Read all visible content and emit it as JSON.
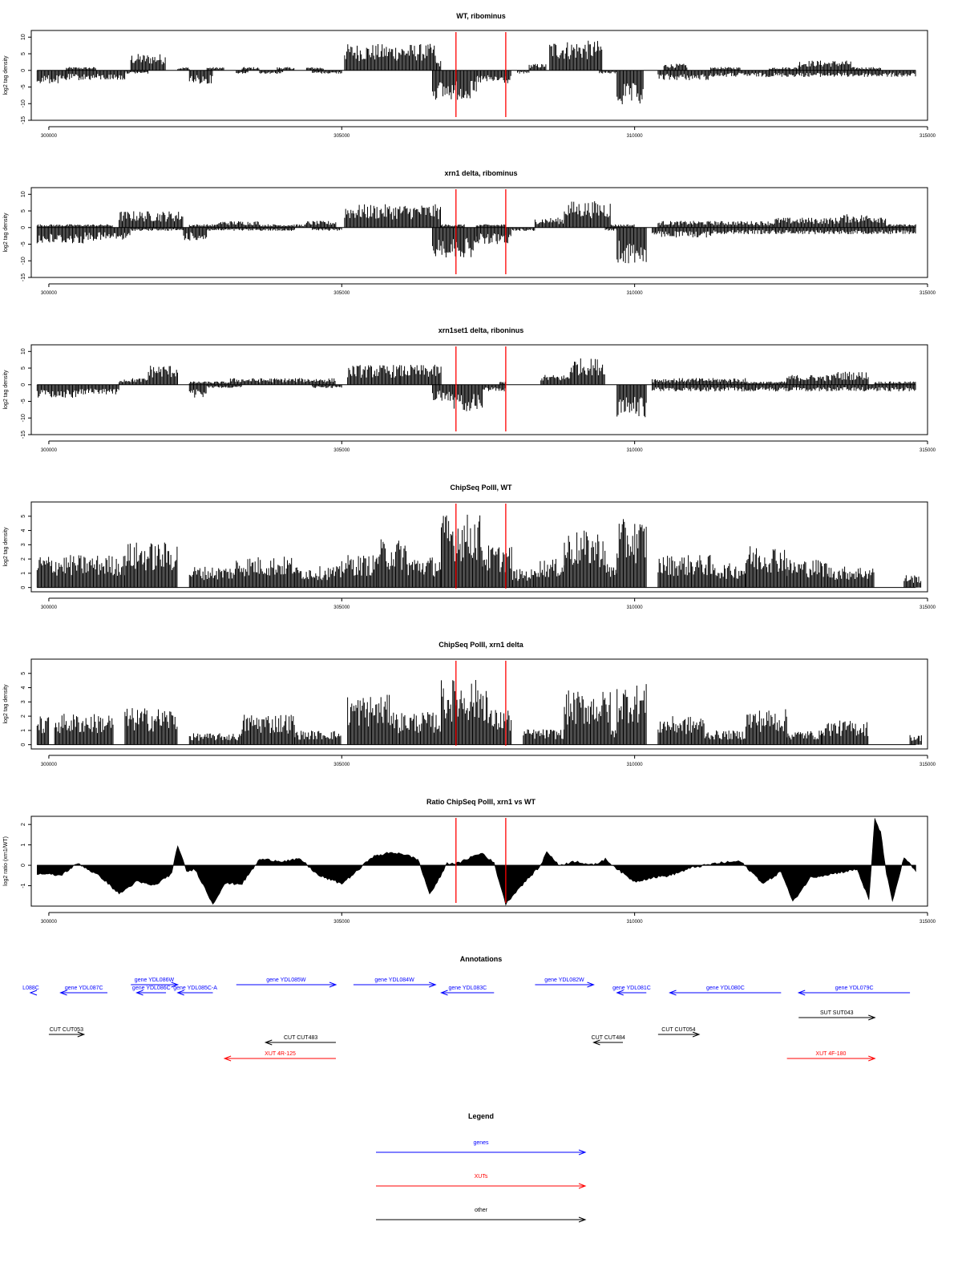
{
  "chart_data": [
    {
      "type": "bar",
      "title": "WT, ribominus",
      "ylabel": "log2 tag density",
      "xlim": [
        299700,
        315000
      ],
      "ylim": [
        -15,
        12
      ],
      "yticks": [
        -15,
        -10,
        -5,
        0,
        5,
        10
      ],
      "xticks": [
        300000,
        305000,
        310000,
        315000
      ],
      "red_lines_x": [
        306950,
        307800
      ],
      "plus_segments": [
        [
          300300,
          300800,
          1
        ],
        [
          301400,
          302000,
          5
        ],
        [
          302200,
          302400,
          1
        ],
        [
          302700,
          303000,
          1
        ],
        [
          303300,
          303600,
          1
        ],
        [
          303900,
          304200,
          1
        ],
        [
          304400,
          304700,
          1
        ],
        [
          305050,
          306600,
          8
        ],
        [
          306600,
          306700,
          3
        ],
        [
          308200,
          308500,
          2
        ],
        [
          308550,
          309450,
          9
        ],
        [
          310500,
          310900,
          2
        ],
        [
          311300,
          311800,
          1
        ],
        [
          312300,
          312800,
          1
        ],
        [
          312800,
          313700,
          3
        ],
        [
          313700,
          314200,
          1
        ]
      ],
      "minus_segments": [
        [
          299800,
          300300,
          4
        ],
        [
          300300,
          301300,
          3
        ],
        [
          301300,
          301700,
          1
        ],
        [
          302400,
          302800,
          4
        ],
        [
          303200,
          303400,
          1
        ],
        [
          303600,
          304000,
          1
        ],
        [
          304500,
          305000,
          1
        ],
        [
          306550,
          307300,
          9
        ],
        [
          307300,
          307900,
          4
        ],
        [
          308000,
          308200,
          1
        ],
        [
          309400,
          309700,
          1
        ],
        [
          309700,
          310150,
          11
        ],
        [
          310400,
          311300,
          3
        ],
        [
          311300,
          312300,
          2
        ],
        [
          312300,
          313300,
          2
        ],
        [
          313300,
          314800,
          2
        ]
      ]
    },
    {
      "type": "bar",
      "title": "xrn1 delta, ribominus",
      "ylabel": "log2 tag density",
      "xlim": [
        299700,
        315000
      ],
      "ylim": [
        -15,
        12
      ],
      "yticks": [
        -15,
        -10,
        -5,
        0,
        5,
        10
      ],
      "xticks": [
        300000,
        305000,
        310000,
        315000
      ],
      "red_lines_x": [
        306950,
        307800
      ],
      "plus_segments": [
        [
          299800,
          300300,
          1
        ],
        [
          300300,
          301100,
          1
        ],
        [
          301200,
          302300,
          5
        ],
        [
          302400,
          302900,
          1
        ],
        [
          302900,
          303600,
          2
        ],
        [
          303600,
          304400,
          1
        ],
        [
          304400,
          304900,
          2
        ],
        [
          305050,
          306700,
          7
        ],
        [
          306700,
          307100,
          1
        ],
        [
          307300,
          307800,
          1
        ],
        [
          308300,
          308800,
          3
        ],
        [
          308800,
          309600,
          8
        ],
        [
          309600,
          310000,
          1
        ],
        [
          310400,
          311300,
          2
        ],
        [
          311300,
          312400,
          2
        ],
        [
          312400,
          313500,
          3
        ],
        [
          313500,
          314300,
          4
        ],
        [
          314300,
          314800,
          1
        ]
      ],
      "minus_segments": [
        [
          299800,
          300600,
          5
        ],
        [
          300600,
          301400,
          4
        ],
        [
          301400,
          302300,
          1
        ],
        [
          302300,
          302700,
          4
        ],
        [
          302700,
          303500,
          1
        ],
        [
          303500,
          304200,
          1
        ],
        [
          304500,
          305000,
          1
        ],
        [
          306550,
          307300,
          9
        ],
        [
          307300,
          307900,
          5
        ],
        [
          307900,
          308300,
          1
        ],
        [
          309500,
          309700,
          1
        ],
        [
          309700,
          310200,
          11
        ],
        [
          310300,
          311300,
          3
        ],
        [
          311300,
          312300,
          2
        ],
        [
          312300,
          313300,
          2
        ],
        [
          313300,
          314800,
          2
        ]
      ]
    },
    {
      "type": "bar",
      "title": "xrn1set1 delta, riboninus",
      "ylabel": "log2 tag density",
      "xlim": [
        299700,
        315000
      ],
      "ylim": [
        -15,
        12
      ],
      "yticks": [
        -15,
        -10,
        -5,
        0,
        5,
        10
      ],
      "xticks": [
        300000,
        305000,
        310000,
        315000
      ],
      "red_lines_x": [
        306950,
        307800
      ],
      "plus_segments": [
        [
          301200,
          301700,
          2
        ],
        [
          301700,
          302200,
          6
        ],
        [
          302400,
          303100,
          1
        ],
        [
          303100,
          303800,
          2
        ],
        [
          303800,
          304300,
          2
        ],
        [
          304300,
          304900,
          2
        ],
        [
          305100,
          306000,
          6
        ],
        [
          306000,
          306700,
          6
        ],
        [
          307700,
          307800,
          1
        ],
        [
          308400,
          308900,
          3
        ],
        [
          308900,
          309500,
          8
        ],
        [
          310300,
          311000,
          2
        ],
        [
          311000,
          311900,
          2
        ],
        [
          311900,
          312600,
          1
        ],
        [
          312600,
          313400,
          3
        ],
        [
          313400,
          314000,
          4
        ],
        [
          314100,
          314800,
          1
        ]
      ],
      "minus_segments": [
        [
          299800,
          300500,
          4
        ],
        [
          300500,
          301200,
          3
        ],
        [
          302400,
          302700,
          4
        ],
        [
          302700,
          303300,
          1
        ],
        [
          304500,
          305000,
          1
        ],
        [
          306550,
          306900,
          5
        ],
        [
          306900,
          307400,
          8
        ],
        [
          307400,
          307800,
          2
        ],
        [
          309700,
          310200,
          10
        ],
        [
          310300,
          311300,
          2
        ],
        [
          311300,
          312300,
          2
        ],
        [
          312300,
          313300,
          2
        ],
        [
          313300,
          314800,
          2
        ]
      ]
    },
    {
      "type": "bar",
      "title": "ChipSeq PolII, WT",
      "ylabel": "log2 tag density",
      "xlim": [
        299700,
        315000
      ],
      "ylim": [
        -0.3,
        6
      ],
      "yticks": [
        0,
        1,
        2,
        3,
        4,
        5
      ],
      "xticks": [
        300000,
        305000,
        310000,
        315000
      ],
      "red_lines_x": [
        306950,
        307800
      ],
      "plus_segments": [
        [
          299800,
          301300,
          2.3
        ],
        [
          301300,
          302200,
          3.2
        ],
        [
          302400,
          303200,
          1.5
        ],
        [
          303200,
          304200,
          2.2
        ],
        [
          304200,
          305000,
          1.5
        ],
        [
          305000,
          305600,
          2.3
        ],
        [
          305600,
          306100,
          3.4
        ],
        [
          306100,
          306700,
          2.2
        ],
        [
          306700,
          307400,
          5.2
        ],
        [
          307400,
          307900,
          3
        ],
        [
          307900,
          308300,
          1.3
        ],
        [
          308300,
          308800,
          2
        ],
        [
          308800,
          309500,
          4
        ],
        [
          309500,
          309700,
          1.7
        ],
        [
          309700,
          310200,
          4.8
        ],
        [
          310400,
          311300,
          2.3
        ],
        [
          311300,
          311900,
          1.7
        ],
        [
          311900,
          312600,
          3
        ],
        [
          312600,
          313300,
          2
        ],
        [
          313300,
          314100,
          1.5
        ],
        [
          314600,
          314900,
          0.9
        ]
      ],
      "minus_segments": []
    },
    {
      "type": "bar",
      "title": "ChipSeq PolII, xrn1 delta",
      "ylabel": "log2 tag density",
      "xlim": [
        299700,
        315000
      ],
      "ylim": [
        -0.3,
        6
      ],
      "yticks": [
        0,
        1,
        2,
        3,
        4,
        5
      ],
      "xticks": [
        300000,
        305000,
        310000,
        315000
      ],
      "red_lines_x": [
        306950,
        307800
      ],
      "plus_segments": [
        [
          299800,
          300000,
          2
        ],
        [
          300100,
          301100,
          2.2
        ],
        [
          301300,
          302200,
          2.6
        ],
        [
          302400,
          303300,
          0.8
        ],
        [
          303300,
          304200,
          2.2
        ],
        [
          304200,
          305000,
          1
        ],
        [
          305100,
          305900,
          3.5
        ],
        [
          305900,
          306700,
          2.3
        ],
        [
          306700,
          307500,
          4.6
        ],
        [
          307500,
          307900,
          2.5
        ],
        [
          308100,
          308800,
          1.1
        ],
        [
          308800,
          309600,
          3.8
        ],
        [
          309600,
          309700,
          1.2
        ],
        [
          309700,
          310200,
          4.3
        ],
        [
          310400,
          311200,
          2
        ],
        [
          311200,
          311900,
          1
        ],
        [
          311900,
          312600,
          2.5
        ],
        [
          312600,
          313200,
          1
        ],
        [
          313200,
          314000,
          1.7
        ],
        [
          314700,
          314900,
          0.7
        ]
      ],
      "minus_segments": []
    },
    {
      "type": "area",
      "title": "Ratio ChipSeq PolII, xrn1 vs WT",
      "ylabel": "log2 ratio (xrn1/WT)",
      "xlim": [
        299700,
        315000
      ],
      "ylim": [
        -2,
        2.4
      ],
      "yticks": [
        -1,
        0,
        1,
        2
      ],
      "xticks": [
        300000,
        305000,
        310000,
        315000
      ],
      "red_lines_x": [
        306950,
        307800
      ],
      "x": [
        299800,
        300200,
        300500,
        300900,
        301200,
        301500,
        301800,
        302100,
        302200,
        302350,
        302500,
        302800,
        303000,
        303300,
        303600,
        304000,
        304300,
        304600,
        305000,
        305300,
        305500,
        305800,
        306000,
        306300,
        306500,
        306600,
        306800,
        307000,
        307200,
        307400,
        307600,
        307800,
        308000,
        308200,
        308400,
        308500,
        308700,
        309000,
        309300,
        309500,
        309800,
        310000,
        310300,
        310600,
        311000,
        311400,
        311800,
        312200,
        312500,
        312700,
        313000,
        313400,
        313800,
        314000,
        314100,
        314200,
        314300,
        314400,
        314600,
        314800
      ],
      "y": [
        -0.4,
        -0.5,
        0.1,
        -0.6,
        -1.4,
        -0.8,
        -1,
        -0.4,
        1,
        -0.3,
        -0.2,
        -1.9,
        -0.9,
        -0.9,
        0.3,
        0.2,
        0.3,
        -0.5,
        -0.9,
        -0.2,
        0.4,
        0.6,
        0.6,
        0.3,
        -1.4,
        -1,
        0.1,
        0.1,
        0.4,
        0.6,
        0.1,
        -1.9,
        -1.2,
        -0.6,
        0,
        0.7,
        0,
        0.2,
        0,
        0.3,
        -0.4,
        -0.8,
        -0.6,
        -0.5,
        -0.1,
        0.1,
        0.2,
        -0.9,
        -0.3,
        -1.8,
        -0.6,
        -0.4,
        -0.2,
        -1.7,
        2.3,
        1.6,
        -0.4,
        -1.8,
        0.4,
        -0.3
      ]
    }
  ],
  "annotations": {
    "title": "Annotations",
    "features": [
      {
        "label": "L088C",
        "start": 299100,
        "end": 299700,
        "dir": "left",
        "row": 0,
        "color": "#0000ff"
      },
      {
        "label": "gene YDL087C",
        "start": 300200,
        "end": 301000,
        "dir": "left",
        "row": 0,
        "color": "#0000ff"
      },
      {
        "label": "gene YDL086W",
        "start": 301400,
        "end": 302200,
        "dir": "right",
        "row": -1,
        "color": "#0000ff"
      },
      {
        "label": "gene YDL086C",
        "start": 301500,
        "end": 302000,
        "dir": "left",
        "row": 0,
        "color": "#0000ff"
      },
      {
        "label": "gene YDL085C-A",
        "start": 302200,
        "end": 302800,
        "dir": "left",
        "row": 0,
        "color": "#0000ff"
      },
      {
        "label": "gene YDL085W",
        "start": 303200,
        "end": 304900,
        "dir": "right",
        "row": -1,
        "color": "#0000ff"
      },
      {
        "label": "gene YDL084W",
        "start": 305200,
        "end": 306600,
        "dir": "right",
        "row": -1,
        "color": "#0000ff"
      },
      {
        "label": "gene YDL083C",
        "start": 306700,
        "end": 307600,
        "dir": "left",
        "row": 0,
        "color": "#0000ff"
      },
      {
        "label": "gene YDL082W",
        "start": 308300,
        "end": 309300,
        "dir": "right",
        "row": -1,
        "color": "#0000ff"
      },
      {
        "label": "gene YDL081C",
        "start": 309700,
        "end": 310200,
        "dir": "left",
        "row": 0,
        "color": "#0000ff"
      },
      {
        "label": "gene YDL080C",
        "start": 310600,
        "end": 312500,
        "dir": "left",
        "row": 0,
        "color": "#0000ff"
      },
      {
        "label": "gene YDL079C",
        "start": 312800,
        "end": 314700,
        "dir": "left",
        "row": 0,
        "color": "#0000ff"
      },
      {
        "label": "SUT SUT043",
        "start": 312800,
        "end": 314100,
        "dir": "right",
        "row": 1,
        "color": "#000000"
      },
      {
        "label": "CUT CUT053",
        "start": 300000,
        "end": 300600,
        "dir": "right",
        "row": 2,
        "color": "#000000"
      },
      {
        "label": "CUT CUT483",
        "start": 303700,
        "end": 304900,
        "dir": "left",
        "row": 3,
        "color": "#000000"
      },
      {
        "label": "CUT CUT484",
        "start": 309300,
        "end": 309800,
        "dir": "left",
        "row": 3,
        "color": "#000000"
      },
      {
        "label": "CUT CUT054",
        "start": 310400,
        "end": 311100,
        "dir": "right",
        "row": 2,
        "color": "#000000"
      },
      {
        "label": "XUT 4R-125",
        "start": 303000,
        "end": 304900,
        "dir": "left",
        "row": 4,
        "color": "#ff0000"
      },
      {
        "label": "XUT 4F-180",
        "start": 312600,
        "end": 314100,
        "dir": "right",
        "row": 4,
        "color": "#ff0000"
      }
    ]
  },
  "legend": {
    "title": "Legend",
    "items": [
      {
        "label": "genes",
        "color": "#0000ff"
      },
      {
        "label": "XUTs",
        "color": "#ff0000"
      },
      {
        "label": "other",
        "color": "#000000"
      }
    ]
  }
}
